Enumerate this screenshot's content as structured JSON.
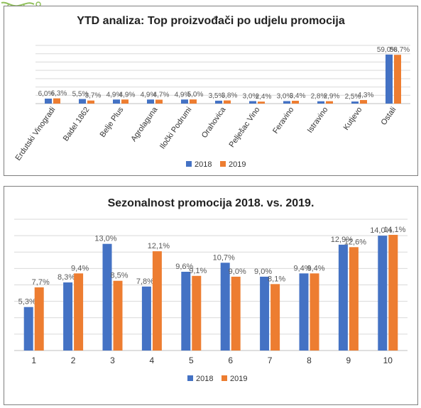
{
  "colors": {
    "s2018": "#4472c4",
    "s2019": "#ed7d31",
    "grid": "#d9d9d9",
    "label": "#595959"
  },
  "decoration": {
    "icon": "vine-ornament-icon"
  },
  "chart_data": [
    {
      "type": "bar",
      "title": "YTD analiza:  Top proizvođači po udjelu promocija",
      "categories": [
        "Erdutski Vinogradi",
        "Badel 1862",
        "Belje Plus",
        "Agrolaguna",
        "Iločki Podrumi",
        "Orahovica",
        "Pelješac Vino",
        "Feravino",
        "Istravino",
        "Kutjevo",
        "Ostali"
      ],
      "series": [
        {
          "name": "2018",
          "values": [
            6.0,
            5.5,
            4.9,
            4.9,
            4.9,
            3.5,
            3.0,
            3.0,
            2.8,
            2.5,
            59.0
          ],
          "labels": [
            "6,0%",
            "5,5%",
            "4,9%",
            "4,9%",
            "4,9%",
            "3,5%",
            "3,0%",
            "3,0%",
            "2,8%",
            "2,5%",
            "59,0%"
          ]
        },
        {
          "name": "2019",
          "values": [
            6.3,
            3.7,
            4.9,
            4.7,
            5.0,
            3.8,
            2.4,
            3.4,
            2.9,
            4.3,
            58.7
          ],
          "labels": [
            "6,3%",
            "3,7%",
            "4,9%",
            "4,7%",
            "5,0%",
            "3,8%",
            "2,4%",
            "3,4%",
            "2,9%",
            "4,3%",
            "58,7%"
          ]
        }
      ],
      "ylim": [
        0,
        70
      ],
      "grid": true,
      "legend": "bottom"
    },
    {
      "type": "bar",
      "title": "Sezonalnost promocija 2018. vs. 2019.",
      "categories": [
        "1",
        "2",
        "3",
        "4",
        "5",
        "6",
        "7",
        "8",
        "9",
        "10"
      ],
      "series": [
        {
          "name": "2018",
          "values": [
            5.3,
            8.3,
            13.0,
            7.8,
            9.6,
            10.7,
            9.0,
            9.4,
            12.9,
            14.0
          ],
          "labels": [
            "5,3%",
            "8,3%",
            "13,0%",
            "7,8%",
            "9,6%",
            "10,7%",
            "9,0%",
            "9,4%",
            "12,9%",
            "14,0%"
          ]
        },
        {
          "name": "2019",
          "values": [
            7.7,
            9.4,
            8.5,
            12.1,
            9.1,
            9.0,
            8.1,
            9.4,
            12.6,
            14.1
          ],
          "labels": [
            "7,7%",
            "9,4%",
            "8,5%",
            "12,1%",
            "9,1%",
            "9,0%",
            "8,1%",
            "9,4%",
            "12,6%",
            "14,1%"
          ]
        }
      ],
      "ylim": [
        0,
        16
      ],
      "grid": true,
      "legend": "bottom"
    }
  ]
}
